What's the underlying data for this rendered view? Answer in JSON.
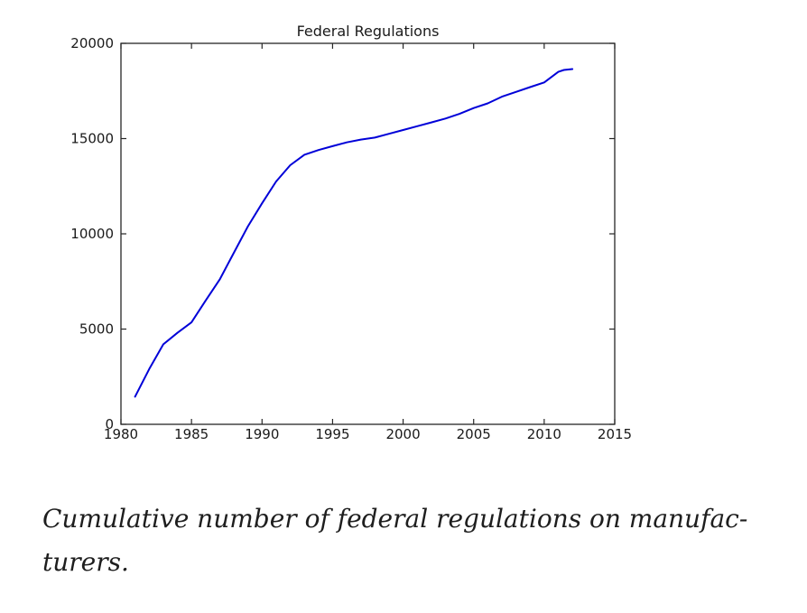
{
  "chart_data": {
    "type": "line",
    "title": "Federal Regulations",
    "series_name": "cumulative-federal-regulations",
    "x": [
      1981,
      1982,
      1983,
      1984,
      1985,
      1986,
      1987,
      1988,
      1989,
      1990,
      1991,
      1992,
      1993,
      1994,
      1995,
      1996,
      1997,
      1998,
      1999,
      2000,
      2001,
      2002,
      2003,
      2004,
      2005,
      2006,
      2007,
      2008,
      2009,
      2010,
      2011,
      2011.4,
      2012
    ],
    "values": [
      1450,
      2900,
      4200,
      4800,
      5350,
      6500,
      7600,
      9000,
      10400,
      11600,
      12750,
      13600,
      14150,
      14400,
      14600,
      14800,
      14950,
      15050,
      15250,
      15450,
      15650,
      15850,
      16050,
      16300,
      16600,
      16850,
      17200,
      17450,
      17700,
      17950,
      18500,
      18600,
      18650
    ],
    "xlim": [
      1980,
      2015
    ],
    "ylim": [
      0,
      20000
    ],
    "xticks": [
      1980,
      1985,
      1990,
      1995,
      2000,
      2005,
      2010,
      2015
    ],
    "yticks": [
      0,
      5000,
      10000,
      15000,
      20000
    ],
    "xlabel": "",
    "ylabel": "",
    "grid": false,
    "legend_position": "none",
    "line_color": "#0000d8",
    "axis_color": "#262626",
    "text_color": "#1a1a1a"
  },
  "caption": {
    "line1": "Cumulative number of federal regulations on manufac-",
    "line2": "turers."
  }
}
